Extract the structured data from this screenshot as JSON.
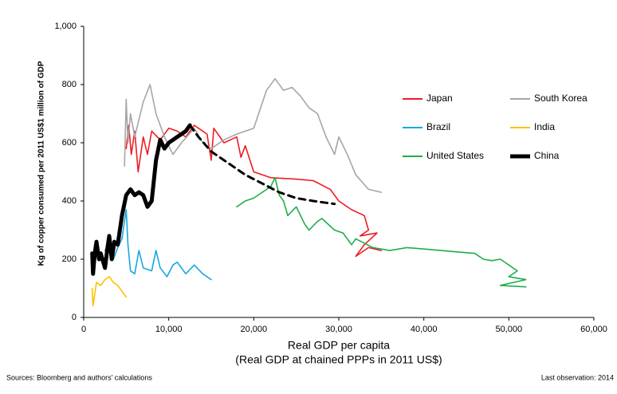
{
  "chart_data": {
    "type": "line",
    "y_label": "Kg of copper consumed per 2011 US$1 million of GDP",
    "x_label": [
      "Real GDP per capita",
      "(Real GDP at chained PPPs in 2011 US$)"
    ],
    "source": "Sources: Bloomberg and authors' calculations",
    "note": "Last observation: 2014",
    "xlim": [
      0,
      60000
    ],
    "ylim": [
      0,
      1000
    ],
    "xticks": [
      0,
      {
        "value": 10000,
        "label": "10,000"
      },
      {
        "value": 20000,
        "label": "20,000"
      },
      {
        "value": 30000,
        "label": "30,000"
      },
      {
        "value": 40000,
        "label": "40,000"
      },
      {
        "value": 50000,
        "label": "50,000"
      },
      {
        "value": 60000,
        "label": "60,000"
      }
    ],
    "yticks": [
      0,
      200,
      400,
      600,
      800,
      {
        "value": 1000,
        "label": "1,000"
      }
    ],
    "series": [
      {
        "name": "Japan",
        "color": "#ee1c25",
        "x": [
          5000,
          5300,
          5600,
          6000,
          6400,
          7000,
          7500,
          8000,
          9000,
          10000,
          11000,
          12000,
          13000,
          14500,
          15000,
          15300,
          16500,
          18000,
          18500,
          19000,
          20000,
          22000,
          25000,
          27000,
          29000,
          30000,
          31500,
          33000,
          33500,
          32500,
          34500,
          33000,
          32000,
          33500,
          35000
        ],
        "values": [
          580,
          660,
          560,
          640,
          500,
          620,
          560,
          640,
          610,
          650,
          640,
          620,
          660,
          630,
          540,
          650,
          600,
          620,
          550,
          590,
          500,
          480,
          475,
          470,
          440,
          400,
          370,
          350,
          300,
          280,
          290,
          250,
          210,
          240,
          230
        ]
      },
      {
        "name": "South Korea",
        "color": "#a6a6a6",
        "x": [
          4800,
          5000,
          5200,
          5500,
          6000,
          7000,
          7800,
          8500,
          9500,
          10500,
          11500,
          13000,
          14000,
          15000,
          16500,
          18000,
          20000,
          21500,
          22500,
          23500,
          24500,
          25500,
          26500,
          27500,
          28500,
          29500,
          30000,
          31000,
          32000,
          33500,
          35000
        ],
        "values": [
          520,
          750,
          600,
          700,
          620,
          740,
          800,
          700,
          620,
          560,
          600,
          650,
          600,
          580,
          610,
          630,
          650,
          780,
          820,
          780,
          790,
          760,
          720,
          700,
          620,
          560,
          620,
          560,
          490,
          440,
          430
        ]
      },
      {
        "name": "Brazil",
        "color": "#1aa6e0",
        "x": [
          2500,
          3000,
          3500,
          4000,
          4500,
          5000,
          5200,
          5500,
          6000,
          6500,
          7000,
          8000,
          8500,
          9000,
          9800,
          10500,
          11000,
          12000,
          13000,
          14000,
          15000
        ],
        "values": [
          230,
          260,
          200,
          240,
          270,
          370,
          250,
          160,
          150,
          230,
          170,
          160,
          230,
          170,
          140,
          180,
          190,
          150,
          180,
          150,
          130
        ]
      },
      {
        "name": "India",
        "color": "#ffc000",
        "x": [
          1000,
          1100,
          1300,
          1500,
          2000,
          2500,
          3000,
          3500,
          4000,
          4500,
          5000
        ],
        "values": [
          100,
          40,
          80,
          120,
          110,
          130,
          140,
          120,
          110,
          90,
          70
        ]
      },
      {
        "name": "United States",
        "color": "#1fad4b",
        "x": [
          18000,
          19000,
          20000,
          21000,
          22000,
          22500,
          23000,
          23500,
          24000,
          25000,
          26000,
          26500,
          27500,
          28000,
          29500,
          30500,
          31500,
          32000,
          34000,
          36000,
          38000,
          40000,
          42000,
          44000,
          46000,
          47000,
          48000,
          49000,
          51000,
          50000,
          52000,
          49000,
          52000
        ],
        "values": [
          380,
          400,
          410,
          430,
          450,
          480,
          420,
          400,
          350,
          380,
          320,
          300,
          330,
          340,
          300,
          290,
          250,
          270,
          240,
          230,
          240,
          235,
          230,
          225,
          220,
          200,
          195,
          200,
          160,
          140,
          130,
          110,
          105
        ]
      },
      {
        "name": "China",
        "color": "#000000",
        "width": 5,
        "x": [
          1000,
          1100,
          1300,
          1500,
          1800,
          2000,
          2500,
          2800,
          3000,
          3300,
          3600,
          4000,
          4500,
          5000,
          5500,
          6000,
          6500,
          7000,
          7500,
          8000,
          8500,
          9000,
          9500,
          10000,
          11000,
          12000,
          12500
        ],
        "values": [
          220,
          150,
          220,
          260,
          200,
          220,
          170,
          240,
          280,
          200,
          260,
          250,
          350,
          420,
          440,
          420,
          430,
          420,
          380,
          400,
          540,
          610,
          580,
          600,
          620,
          640,
          660
        ]
      },
      {
        "color": "#000000",
        "width": 3,
        "dashed": true,
        "x": [
          12500,
          13500,
          15000,
          17000,
          19000,
          21000,
          23000,
          25000,
          27000,
          29500
        ],
        "values": [
          660,
          620,
          570,
          530,
          490,
          460,
          430,
          410,
          400,
          390
        ]
      }
    ]
  }
}
